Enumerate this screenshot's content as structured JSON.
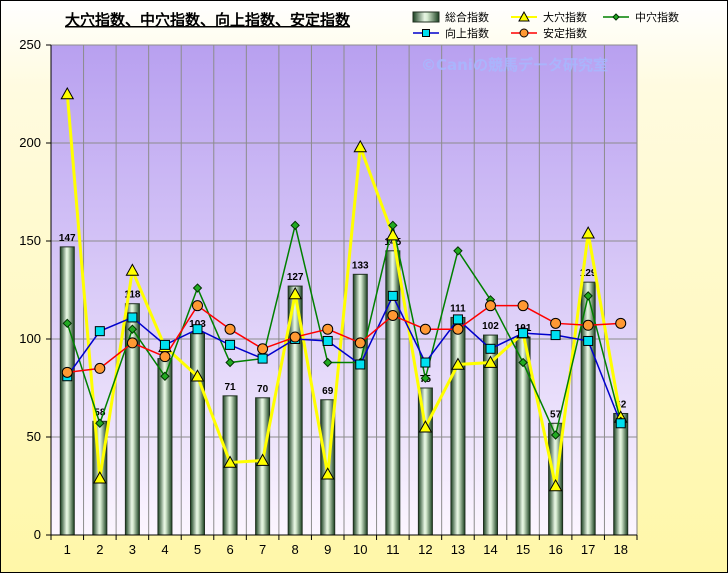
{
  "chart_data": {
    "type": "bar",
    "title": "大穴指数、中穴指数、向上指数、安定指数",
    "watermark": "©Caniの競馬データ研究室",
    "categories": [
      "1",
      "2",
      "3",
      "4",
      "5",
      "6",
      "7",
      "8",
      "9",
      "10",
      "11",
      "12",
      "13",
      "14",
      "15",
      "16",
      "17",
      "18"
    ],
    "ylim": [
      0,
      250
    ],
    "yticks": [
      0,
      50,
      100,
      150,
      200,
      250
    ],
    "grid": true,
    "legend_position": "top-right",
    "bars": {
      "name": "総合指数",
      "values": [
        147,
        58,
        118,
        90,
        103,
        71,
        70,
        127,
        69,
        133,
        145,
        75,
        111,
        102,
        101,
        57,
        129,
        62
      ],
      "labels": [
        "147",
        "58",
        "118",
        "90",
        "103",
        "71",
        "70",
        "127",
        "69",
        "133",
        "145",
        "75",
        "111",
        "102",
        "101",
        "57",
        "129",
        "62"
      ]
    },
    "series": [
      {
        "name": "大穴指数",
        "color": "#ffff00",
        "stroke": "#000000",
        "marker": "triangle",
        "values": [
          225,
          29,
          135,
          96,
          81,
          37,
          38,
          123,
          31,
          198,
          153,
          55,
          87,
          88,
          103,
          25,
          154,
          60
        ]
      },
      {
        "name": "中穴指数",
        "color": "#008000",
        "stroke": "#008000",
        "marker": "diamond",
        "values": [
          108,
          57,
          105,
          81,
          126,
          88,
          90,
          158,
          88,
          88,
          158,
          80,
          145,
          120,
          88,
          51,
          122,
          58
        ]
      },
      {
        "name": "向上指数",
        "color": "#0000cc",
        "stroke": "#000000",
        "marker": "square",
        "values": [
          81,
          104,
          111,
          97,
          105,
          97,
          90,
          100,
          99,
          87,
          122,
          88,
          110,
          95,
          103,
          102,
          99,
          57
        ]
      },
      {
        "name": "安定指数",
        "color": "#ff0000",
        "stroke": "#000000",
        "marker": "circle",
        "values": [
          83,
          85,
          98,
          91,
          117,
          105,
          95,
          101,
          105,
          98,
          112,
          105,
          105,
          117,
          117,
          108,
          107,
          108
        ]
      }
    ]
  }
}
